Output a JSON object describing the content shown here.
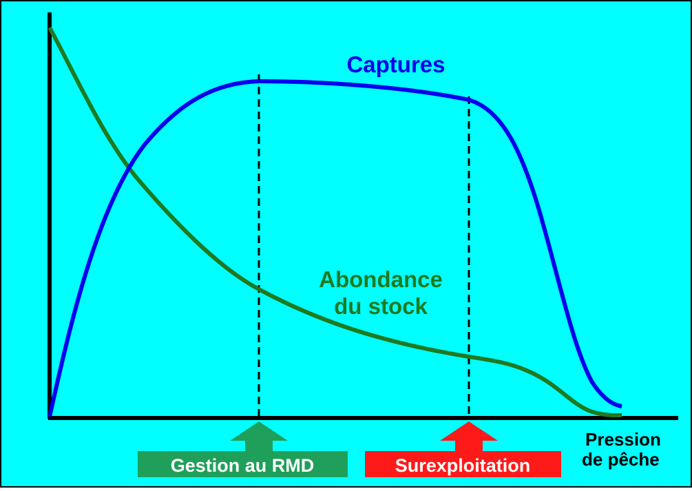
{
  "curves": {
    "catch_label": "Captures",
    "stock_label": [
      "Abondance",
      "du stock"
    ]
  },
  "markers": [
    {
      "label": "Gestion au RMD"
    },
    {
      "label": "Surexploitation"
    }
  ],
  "axis": {
    "x_label": [
      "Pression",
      "de pêche"
    ]
  }
}
